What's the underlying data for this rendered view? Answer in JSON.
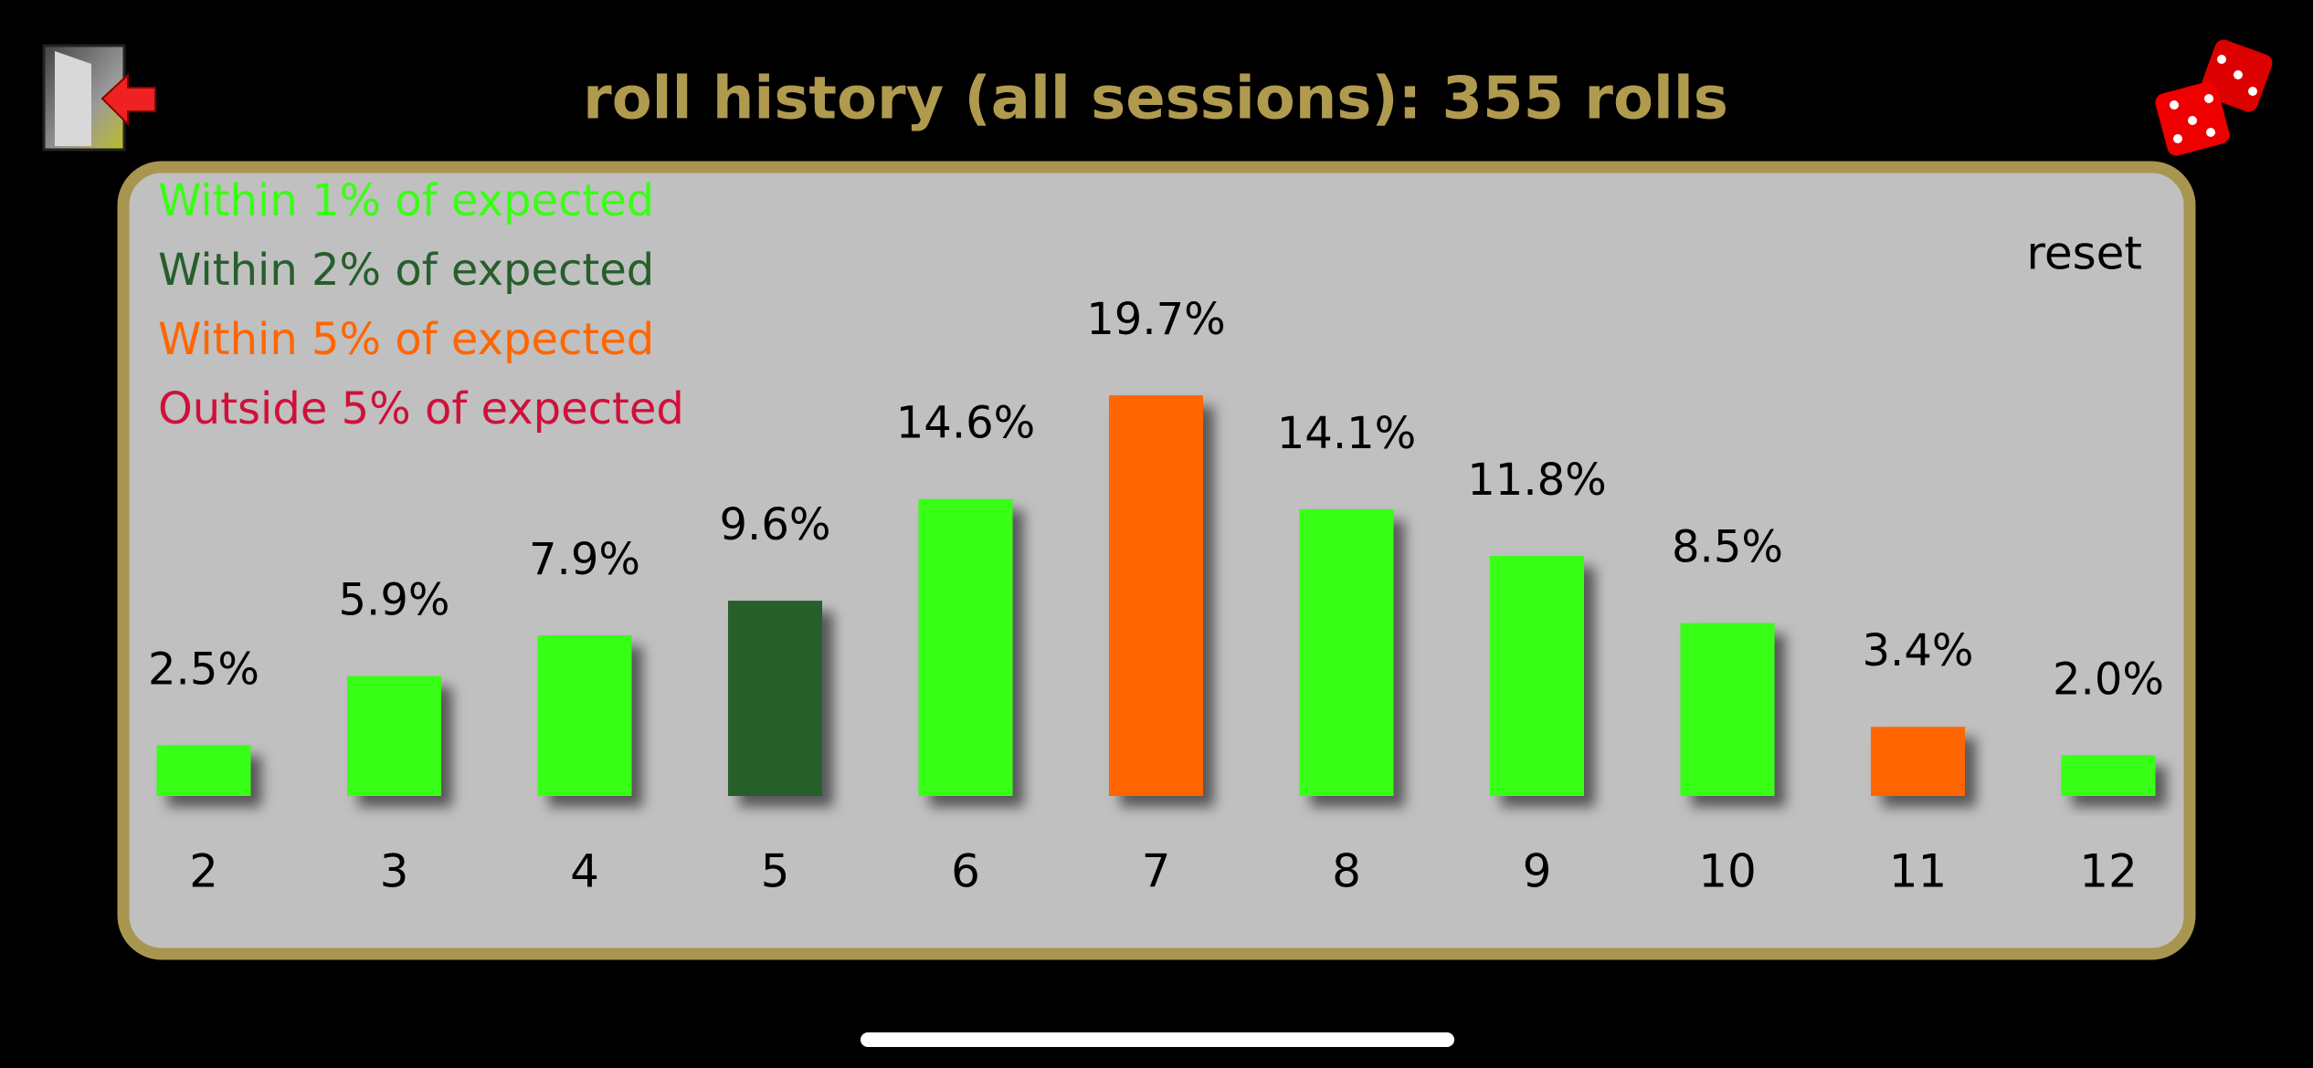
{
  "chart_data": {
    "type": "bar",
    "title": "roll history (all sessions): 355 rolls",
    "categories": [
      "2",
      "3",
      "4",
      "5",
      "6",
      "7",
      "8",
      "9",
      "10",
      "11",
      "12"
    ],
    "values": [
      2.5,
      5.9,
      7.9,
      9.6,
      14.6,
      19.7,
      14.1,
      11.8,
      8.5,
      3.4,
      2.0
    ],
    "value_labels": [
      "2.5%",
      "5.9%",
      "7.9%",
      "9.6%",
      "14.6%",
      "19.7%",
      "14.1%",
      "11.8%",
      "8.5%",
      "3.4%",
      "2.0%"
    ],
    "colors": [
      "#39ff14",
      "#39ff14",
      "#39ff14",
      "#265e2c",
      "#39ff14",
      "#ff6600",
      "#39ff14",
      "#39ff14",
      "#39ff14",
      "#ff6600",
      "#39ff14"
    ],
    "ylim": [
      0,
      25
    ],
    "legend": [
      {
        "name": "Within 1% of expected",
        "color": "#39ff14"
      },
      {
        "name": "Within 2% of expected",
        "color": "#265e2c"
      },
      {
        "name": "Within 5% of expected",
        "color": "#ff6600"
      },
      {
        "name": "Outside 5% of expected",
        "color": "#d0103a"
      }
    ]
  },
  "controls": {
    "reset": "reset"
  }
}
